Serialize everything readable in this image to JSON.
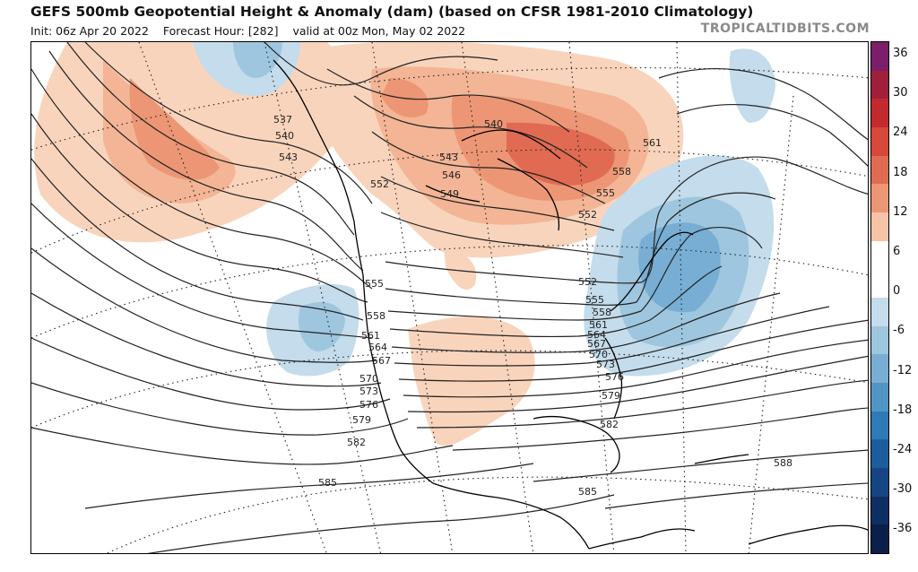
{
  "header": {
    "title": "GEFS 500mb Geopotential Height & Anomaly (dam) (based on CFSR 1981-2010 Climatology)",
    "init": "Init: 06z Apr 20 2022",
    "forecast_hour": "Forecast Hour: [282]",
    "valid": "valid at 00z Mon, May 02 2022",
    "brand": "TROPICALTIDBITS.COM"
  },
  "colorbar": {
    "labels": [
      "36",
      "30",
      "24",
      "18",
      "12",
      "6",
      "0",
      "-6",
      "-12",
      "-18",
      "-24",
      "-30",
      "-36"
    ],
    "colors": [
      "#7b1f6a",
      "#a01f3a",
      "#c22a2e",
      "#d6483a",
      "#e06b52",
      "#ec9675",
      "#f6c3a6",
      "#ffffff",
      "#ffffff",
      "#c4dceb",
      "#9ec6df",
      "#78aed3",
      "#5195c4",
      "#2f79b5",
      "#1c5e9c",
      "#154683",
      "#0e2f63",
      "#0a1f4a"
    ]
  },
  "height_labels": {
    "values": [
      "537",
      "540",
      "543",
      "552",
      "555",
      "558",
      "561",
      "564",
      "567",
      "570",
      "573",
      "576",
      "579",
      "582",
      "585",
      "540",
      "543",
      "546",
      "549",
      "552",
      "555",
      "558",
      "561",
      "552",
      "555",
      "558",
      "561",
      "564",
      "567",
      "570",
      "573",
      "576",
      "579",
      "582",
      "585",
      "588"
    ]
  },
  "legend_icons": {
    "land_outline": "coastline-icon",
    "graticule": "graticule-icon"
  }
}
